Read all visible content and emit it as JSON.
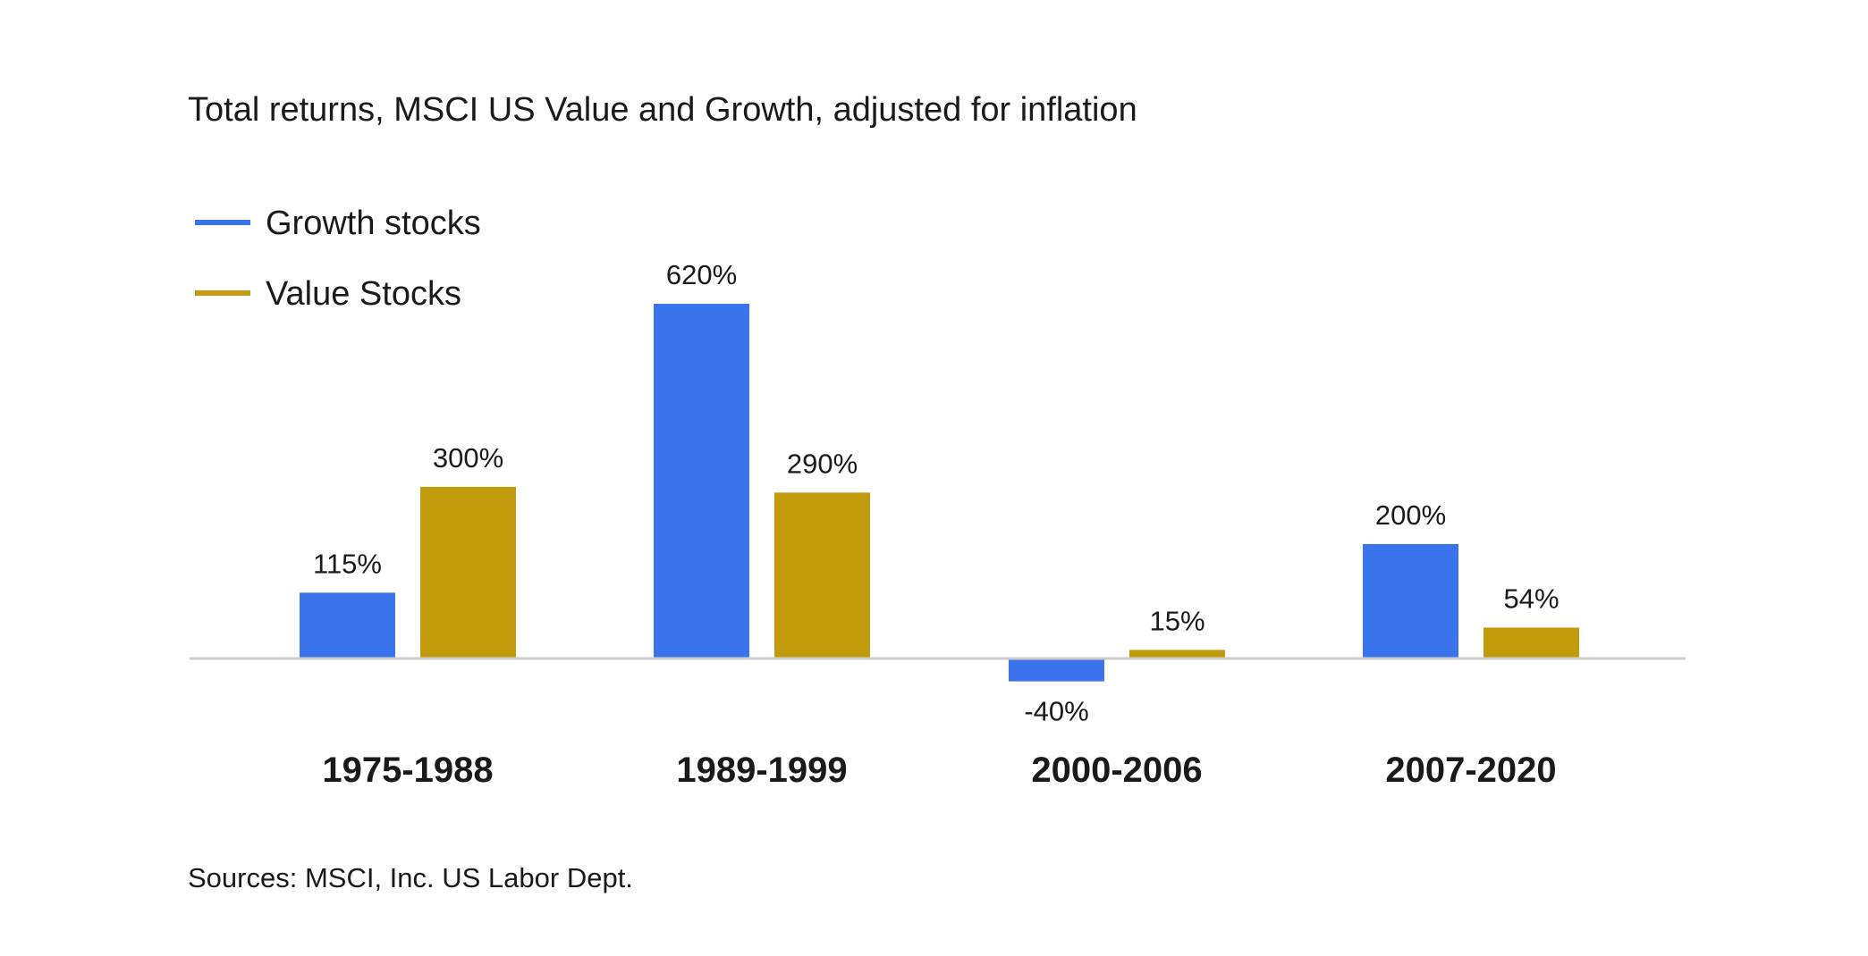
{
  "title": "Total returns, MSCI US Value and Growth, adjusted for inflation",
  "source": "Sources: MSCI, Inc. US Labor Dept.",
  "colors": {
    "growth": "#3b73ec",
    "value": "#c29b0c",
    "baseline": "#cccccc"
  },
  "chart_data": {
    "type": "bar",
    "title": "Total returns, MSCI US Value and Growth, adjusted for inflation",
    "categories": [
      "1975-1988",
      "1989-1999",
      "2000-2006",
      "2007-2020"
    ],
    "series": [
      {
        "name": "Growth stocks",
        "values": [
          115,
          620,
          -40,
          200
        ],
        "labels": [
          "115%",
          "620%",
          "-40%",
          "200%"
        ]
      },
      {
        "name": "Value Stocks",
        "values": [
          300,
          290,
          15,
          54
        ],
        "labels": [
          "300%",
          "290%",
          "15%",
          "54%"
        ]
      }
    ],
    "unit": "%",
    "legend_position": "top-left",
    "grid": false
  }
}
